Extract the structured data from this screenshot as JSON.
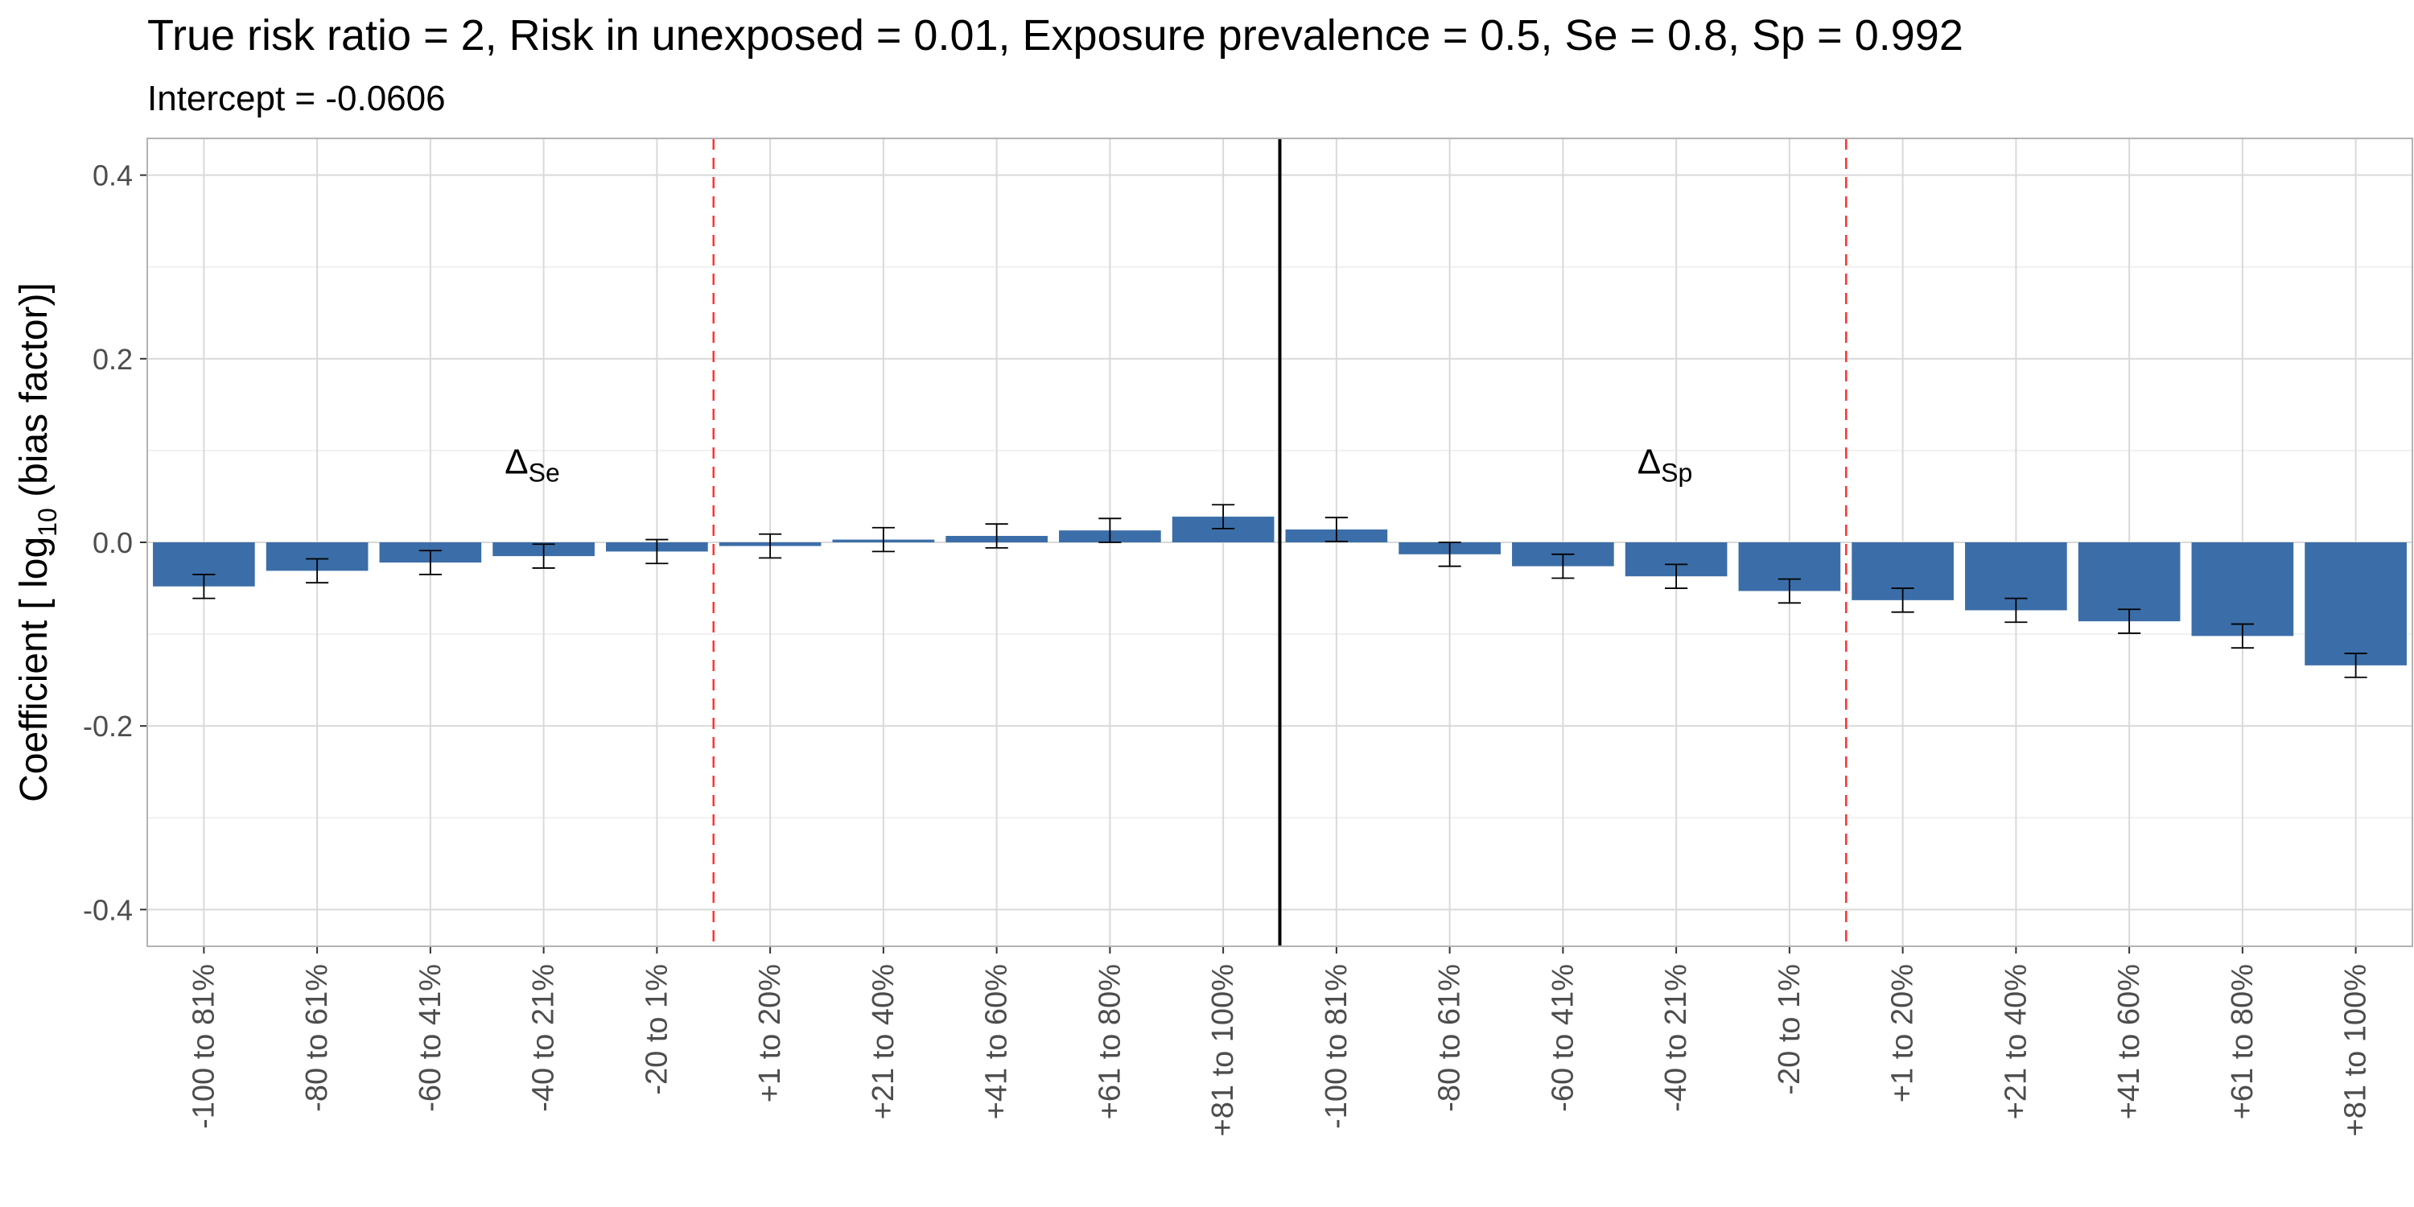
{
  "chart_data": {
    "type": "bar",
    "title": "True risk ratio = 2, Risk in unexposed = 0.01, Exposure prevalence = 0.5, Se = 0.8, Sp = 0.992",
    "subtitle": "Intercept = -0.0606",
    "ylabel": {
      "prefix": "Coefficient [ log",
      "subscript": "10",
      "suffix": " (bias factor)]"
    },
    "ylim": [
      -0.44,
      0.44
    ],
    "yticks": [
      "0.4",
      "0.2",
      "0.0",
      "-0.2",
      "-0.4"
    ],
    "ytick_values": [
      0.4,
      0.2,
      0.0,
      -0.2,
      -0.4
    ],
    "grid": true,
    "bar_color": "#3b6ea8",
    "divider_color": "#000000",
    "dashed_color": "#ff3333",
    "groups": [
      {
        "label_main": "Δ",
        "label_sub": "Se",
        "categories": [
          "-100 to 81%",
          "-80 to 61%",
          "-60 to 41%",
          "-40 to 21%",
          "-20 to 1%",
          "+1 to 20%",
          "+21 to 40%",
          "+41 to 60%",
          "+61 to 80%",
          "+81 to 100%"
        ],
        "values": [
          -0.048,
          -0.031,
          -0.022,
          -0.015,
          -0.01,
          -0.004,
          0.003,
          0.007,
          0.013,
          0.028
        ],
        "err_low": [
          -0.061,
          -0.044,
          -0.035,
          -0.028,
          -0.023,
          -0.017,
          -0.01,
          -0.006,
          0.0,
          0.015
        ],
        "err_high": [
          -0.035,
          -0.018,
          -0.009,
          -0.002,
          0.003,
          0.009,
          0.016,
          0.02,
          0.026,
          0.041
        ]
      },
      {
        "label_main": "Δ",
        "label_sub": "Sp",
        "categories": [
          "-100 to 81%",
          "-80 to 61%",
          "-60 to 41%",
          "-40 to 21%",
          "-20 to 1%",
          "+1 to 20%",
          "+21 to 40%",
          "+41 to 60%",
          "+61 to 80%",
          "+81 to 100%"
        ],
        "values": [
          0.014,
          -0.013,
          -0.026,
          -0.037,
          -0.053,
          -0.063,
          -0.074,
          -0.086,
          -0.102,
          -0.134
        ],
        "err_low": [
          0.001,
          -0.026,
          -0.039,
          -0.05,
          -0.066,
          -0.076,
          -0.087,
          -0.099,
          -0.115,
          -0.147
        ],
        "err_high": [
          0.027,
          0.0,
          -0.013,
          -0.024,
          -0.04,
          -0.05,
          -0.061,
          -0.073,
          -0.089,
          -0.121
        ]
      }
    ]
  }
}
